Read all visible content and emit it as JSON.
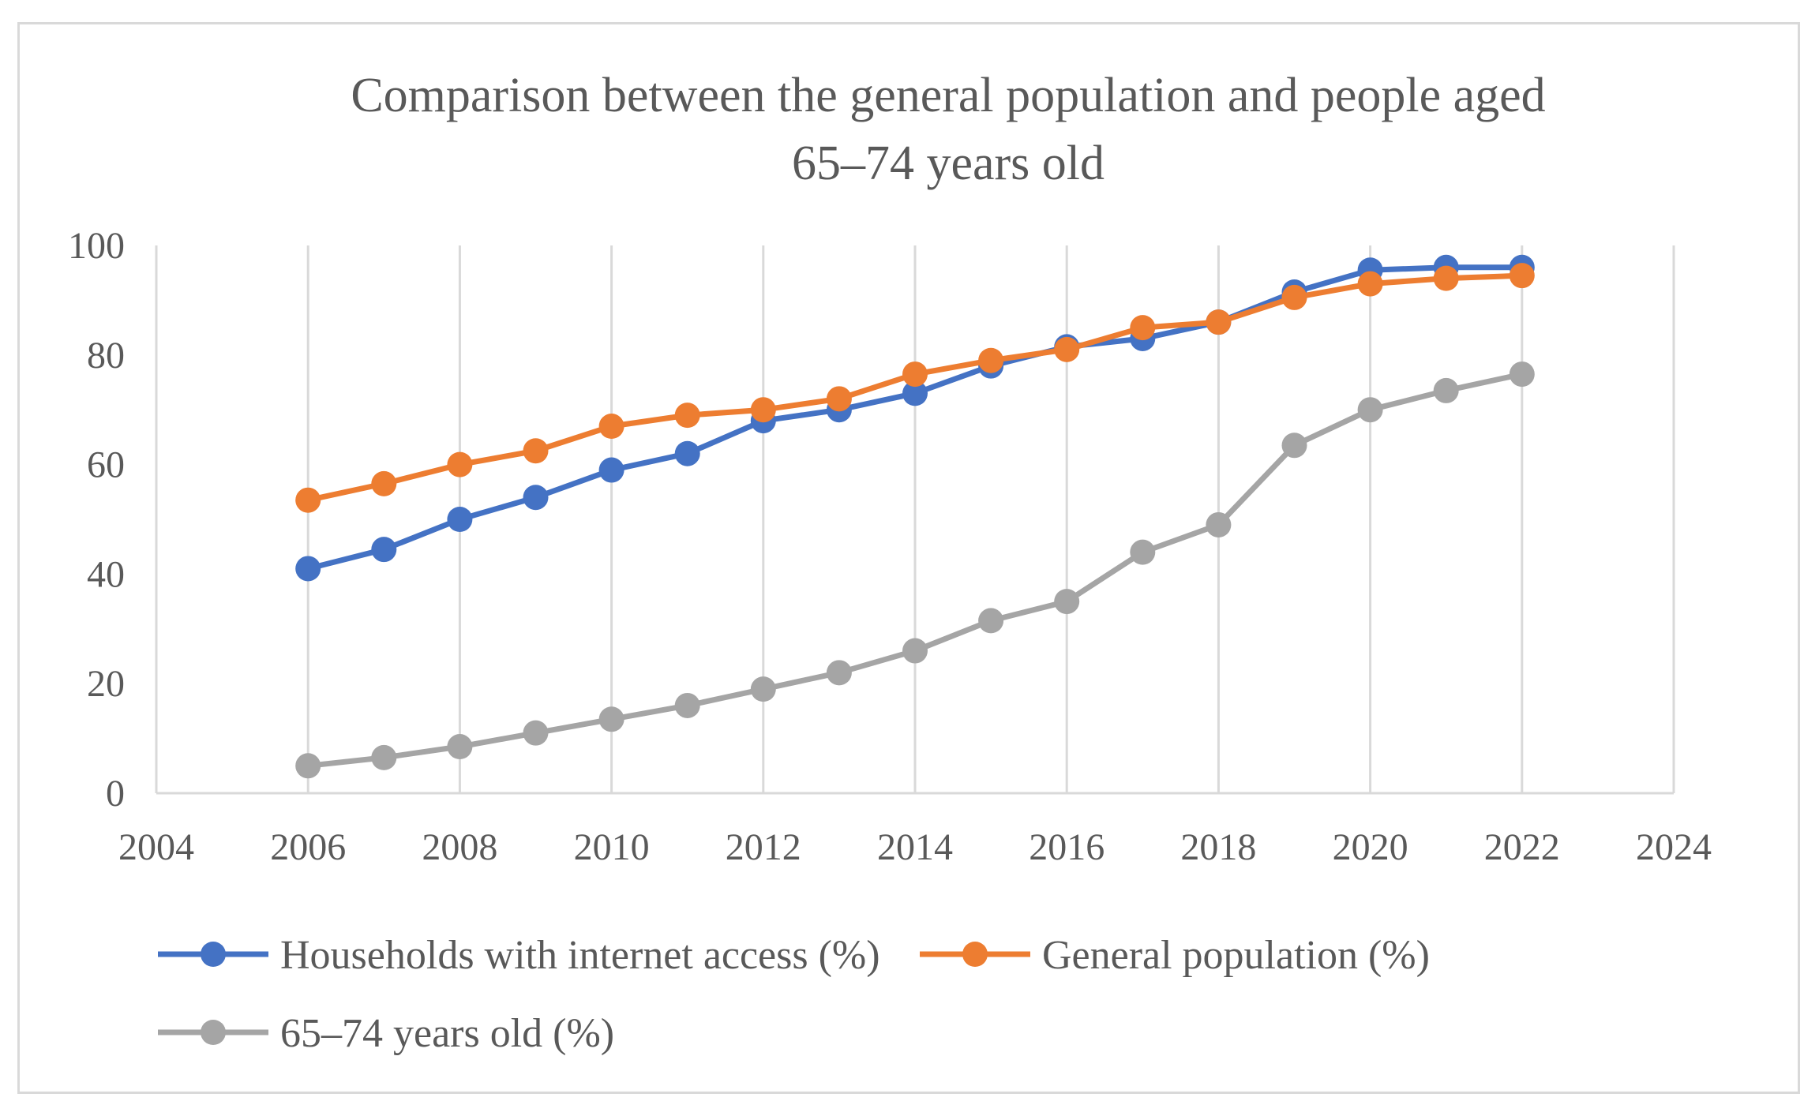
{
  "chart_data": {
    "type": "line",
    "title_lines": [
      "Comparison between the general population and people aged",
      "65–74 years old"
    ],
    "xlabel": "",
    "ylabel": "",
    "xlim": [
      2004,
      2024
    ],
    "ylim": [
      0,
      100
    ],
    "x_ticks": [
      2004,
      2006,
      2008,
      2010,
      2012,
      2014,
      2016,
      2018,
      2020,
      2022,
      2024
    ],
    "y_ticks": [
      0,
      20,
      40,
      60,
      80,
      100
    ],
    "grid": "vertical",
    "legend_position": "bottom",
    "x": [
      2006,
      2007,
      2008,
      2009,
      2010,
      2011,
      2012,
      2013,
      2014,
      2015,
      2016,
      2017,
      2018,
      2019,
      2020,
      2021,
      2022
    ],
    "series": [
      {
        "name": "Households with internet access (%)",
        "color": "#4472c4",
        "values": [
          41,
          44.5,
          50,
          54,
          59,
          62,
          68,
          70,
          73,
          78,
          81.5,
          83,
          86,
          91.5,
          95.5,
          96,
          96
        ]
      },
      {
        "name": "General population (%)",
        "color": "#ed7d31",
        "values": [
          53.5,
          56.5,
          60,
          62.5,
          67,
          69,
          70,
          72,
          76.5,
          79,
          81,
          85,
          86,
          90.5,
          93,
          94,
          94.5
        ]
      },
      {
        "name": "65–74 years old (%)",
        "color": "#a5a5a5",
        "values": [
          5,
          6.5,
          8.5,
          11,
          13.5,
          16,
          19,
          22,
          26,
          31.5,
          35,
          44,
          49,
          63.5,
          70,
          73.5,
          76.5
        ]
      }
    ]
  }
}
